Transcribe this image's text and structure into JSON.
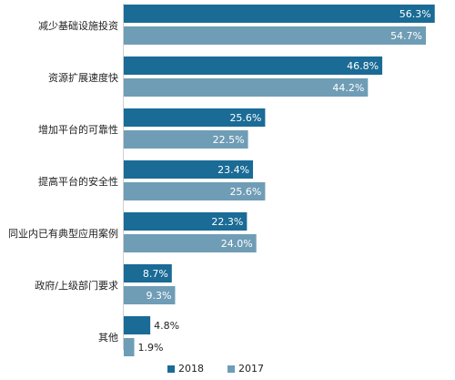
{
  "chart_data": {
    "type": "bar",
    "orientation": "horizontal",
    "categories": [
      "减少基础设施投资",
      "资源扩展速度快",
      "增加平台的可靠性",
      "提高平台的安全性",
      "同业内已有典型应用案例",
      "政府/上级部门要求",
      "其他"
    ],
    "series": [
      {
        "name": "2018",
        "color": "#1a6b96",
        "values": [
          56.3,
          46.8,
          25.6,
          23.4,
          22.3,
          8.7,
          4.8
        ],
        "labels": [
          "56.3%",
          "46.8%",
          "25.6%",
          "23.4%",
          "22.3%",
          "8.7%",
          "4.8%"
        ]
      },
      {
        "name": "2017",
        "color": "#6f9db6",
        "values": [
          54.7,
          44.2,
          22.5,
          25.6,
          24.0,
          9.3,
          1.9
        ],
        "labels": [
          "54.7%",
          "44.2%",
          "22.5%",
          "25.6%",
          "24.0%",
          "9.3%",
          "1.9%"
        ]
      }
    ],
    "value_unit": "%",
    "legend_position": "bottom",
    "grid": false
  }
}
